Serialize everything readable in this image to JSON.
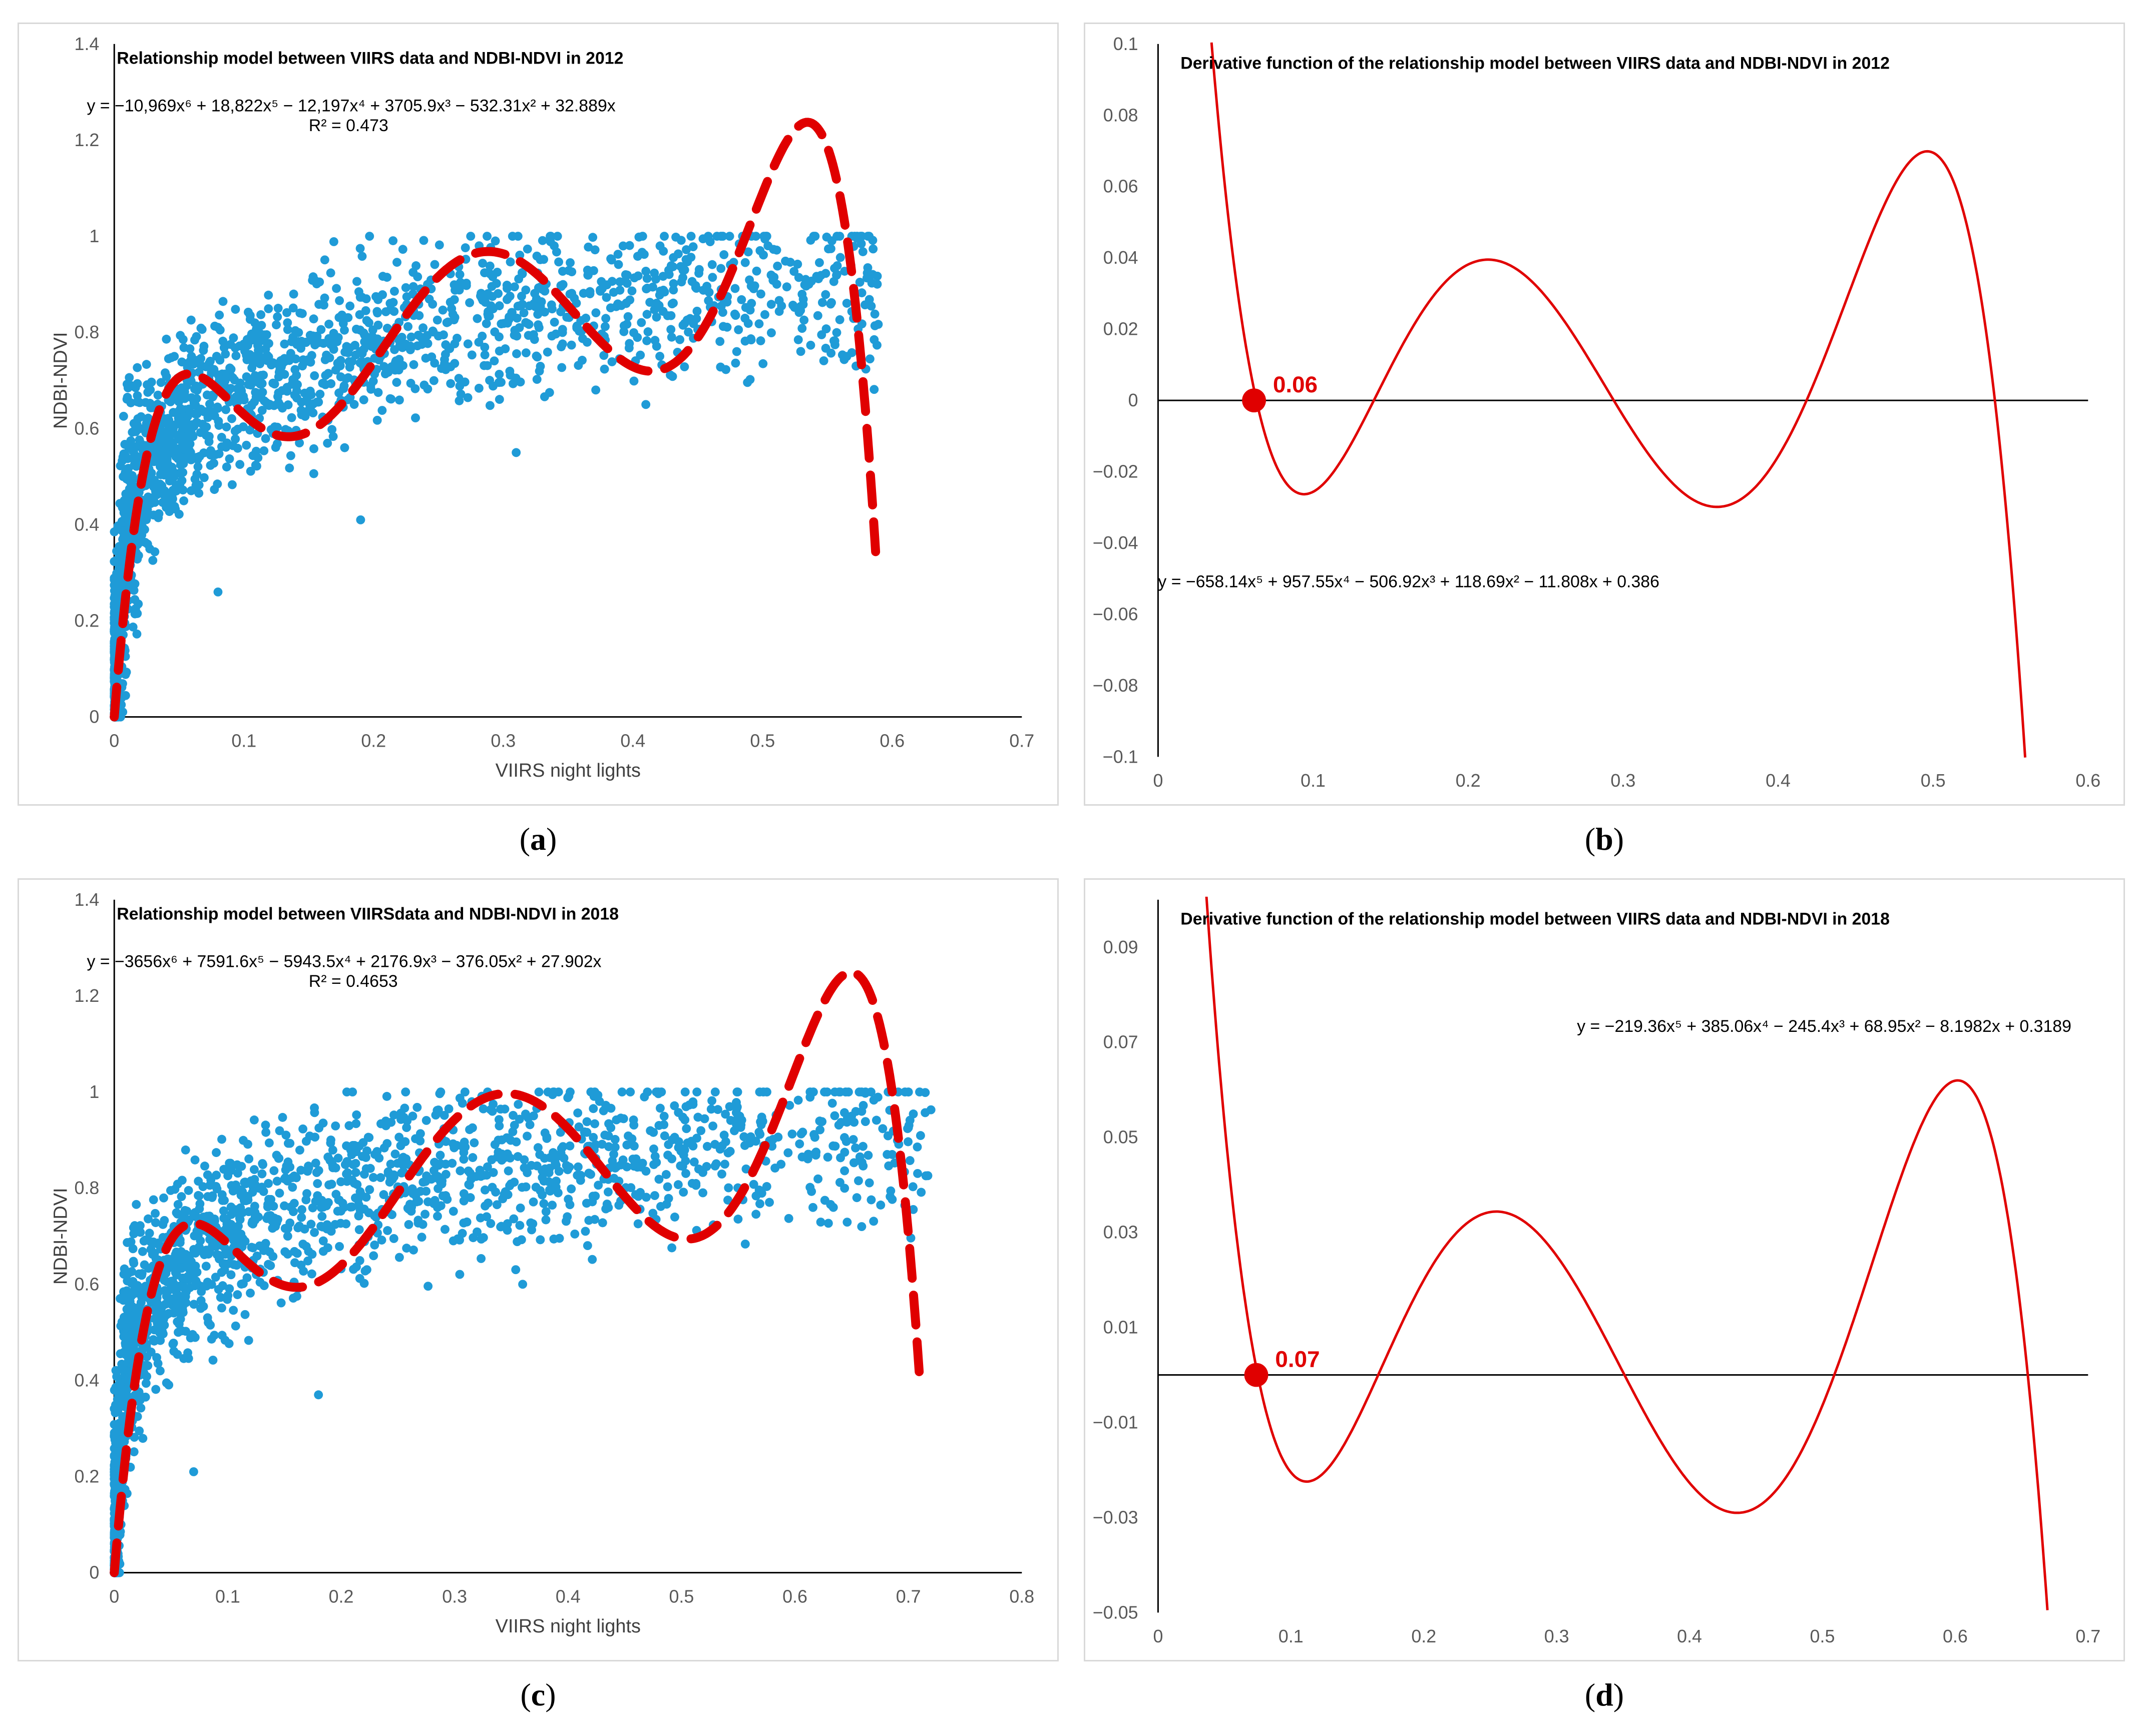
{
  "chart_data": [
    {
      "id": "a",
      "type": "scatter",
      "title": "Relationship model between VIIRS data and NDBI-NDVI in 2012",
      "equation": "y = −10,969x⁶ + 18,822x⁵ − 12,197x⁴ + 3705.9x³ − 532.31x² + 32.889x",
      "r2": "R² = 0.473",
      "xlabel": "VIIRS night lights",
      "ylabel": "NDBI-NDVI",
      "xlim": [
        0,
        0.7
      ],
      "ylim": [
        0,
        1.4
      ],
      "xticks": [
        0,
        0.1,
        0.2,
        0.3,
        0.4,
        0.5,
        0.6,
        0.7
      ],
      "yticks": [
        0,
        0.2,
        0.4,
        0.6,
        0.8,
        1,
        1.2,
        1.4
      ],
      "xtick_labels": [
        "0",
        "0.1",
        "0.2",
        "0.3",
        "0.4",
        "0.5",
        "0.6",
        "0.7"
      ],
      "ytick_labels": [
        "0",
        "0.2",
        "0.4",
        "0.6",
        "0.8",
        "1",
        "1.2",
        "1.4"
      ],
      "scatter_color": "#1f9bd7",
      "fit_color": "#e00000",
      "fit_coeffs": [
        -10969,
        18822,
        -12197,
        3705.9,
        -532.31,
        32.889,
        0
      ],
      "fit_range": [
        0,
        0.588
      ],
      "cloud": {
        "x_max": 0.59,
        "n": 1900,
        "trend": [
          [
            0,
            0.05
          ],
          [
            0.01,
            0.4
          ],
          [
            0.03,
            0.55
          ],
          [
            0.06,
            0.62
          ],
          [
            0.1,
            0.68
          ],
          [
            0.15,
            0.74
          ],
          [
            0.2,
            0.79
          ],
          [
            0.3,
            0.85
          ],
          [
            0.4,
            0.87
          ],
          [
            0.5,
            0.89
          ],
          [
            0.59,
            0.9
          ]
        ],
        "spread": 0.11
      },
      "extra_points": [
        [
          0.31,
          0.55
        ],
        [
          0.08,
          0.26
        ],
        [
          0.19,
          0.41
        ],
        [
          0.565,
          0.75
        ],
        [
          0.41,
          0.65
        ]
      ]
    },
    {
      "id": "b",
      "type": "line",
      "title": "Derivative function of the relationship model between VIIRS data and NDBI-NDVI in 2012",
      "equation": "y = −658.14x⁵ + 957.55x⁴ − 506.92x³ + 118.69x² − 11.808x + 0.386",
      "xlim": [
        0,
        0.6
      ],
      "ylim": [
        -0.1,
        0.1
      ],
      "xticks": [
        0,
        0.1,
        0.2,
        0.3,
        0.4,
        0.5,
        0.6
      ],
      "yticks": [
        -0.1,
        -0.08,
        -0.06,
        -0.04,
        -0.02,
        0,
        0.02,
        0.04,
        0.06,
        0.08,
        0.1
      ],
      "xtick_labels": [
        "0",
        "0.1",
        "0.2",
        "0.3",
        "0.4",
        "0.5",
        "0.6"
      ],
      "ytick_labels": [
        "−0.1",
        "−0.08",
        "−0.06",
        "−0.04",
        "−0.02",
        "0",
        "0.02",
        "0.04",
        "0.06",
        "0.08",
        "0.1"
      ],
      "line_color": "#e00000",
      "coeffs": [
        -658.14,
        957.55,
        -506.92,
        118.69,
        -11.808,
        0.386
      ],
      "root_x": 0.0619,
      "root_label": "0.06"
    },
    {
      "id": "c",
      "type": "scatter",
      "title": "Relationship model between VIIRSdata and NDBI-NDVI in 2018",
      "equation": "y = −3656x⁶ + 7591.6x⁵ − 5943.5x⁴ + 2176.9x³ − 376.05x² + 27.902x",
      "r2": "R² = 0.4653",
      "xlabel": "VIIRS night lights",
      "ylabel": "NDBI-NDVI",
      "xlim": [
        0,
        0.8
      ],
      "ylim": [
        0,
        1.4
      ],
      "xticks": [
        0,
        0.1,
        0.2,
        0.3,
        0.4,
        0.5,
        0.6,
        0.7,
        0.8
      ],
      "yticks": [
        0,
        0.2,
        0.4,
        0.6,
        0.8,
        1,
        1.2,
        1.4
      ],
      "xtick_labels": [
        "0",
        "0.1",
        "0.2",
        "0.3",
        "0.4",
        "0.5",
        "0.6",
        "0.7",
        "0.8"
      ],
      "ytick_labels": [
        "0",
        "0.2",
        "0.4",
        "0.6",
        "0.8",
        "1",
        "1.2",
        "1.4"
      ],
      "scatter_color": "#1f9bd7",
      "fit_color": "#e00000",
      "fit_coeffs": [
        -3656,
        7591.6,
        -5943.5,
        2176.9,
        -376.05,
        27.902,
        0
      ],
      "fit_range": [
        0,
        0.71
      ],
      "cloud": {
        "x_max": 0.72,
        "n": 1900,
        "trend": [
          [
            0,
            0.05
          ],
          [
            0.01,
            0.42
          ],
          [
            0.03,
            0.56
          ],
          [
            0.06,
            0.64
          ],
          [
            0.1,
            0.69
          ],
          [
            0.15,
            0.74
          ],
          [
            0.2,
            0.78
          ],
          [
            0.3,
            0.84
          ],
          [
            0.4,
            0.86
          ],
          [
            0.5,
            0.88
          ],
          [
            0.6,
            0.88
          ],
          [
            0.72,
            0.9
          ]
        ],
        "spread": 0.11
      },
      "extra_points": [
        [
          0.36,
          0.6
        ],
        [
          0.18,
          0.37
        ],
        [
          0.07,
          0.21
        ],
        [
          0.205,
          1.0
        ],
        [
          0.21,
          1.0
        ]
      ]
    },
    {
      "id": "d",
      "type": "line",
      "title": "Derivative function of the relationship model between VIIRS data and NDBI-NDVI in 2018",
      "equation": "y = −219.36x⁵ + 385.06x⁴ − 245.4x³ + 68.95x² − 8.1982x + 0.3189",
      "xlim": [
        0,
        0.7
      ],
      "ylim": [
        -0.05,
        0.1
      ],
      "xticks": [
        0,
        0.1,
        0.2,
        0.3,
        0.4,
        0.5,
        0.6,
        0.7
      ],
      "yticks": [
        -0.05,
        -0.03,
        -0.01,
        0.01,
        0.03,
        0.05,
        0.07,
        0.09
      ],
      "xtick_labels": [
        "0",
        "0.1",
        "0.2",
        "0.3",
        "0.4",
        "0.5",
        "0.6",
        "0.7"
      ],
      "ytick_labels": [
        "−0.05",
        "−0.03",
        "−0.01",
        "0.01",
        "0.03",
        "0.05",
        "0.07",
        "0.09"
      ],
      "line_color": "#e00000",
      "coeffs": [
        -219.36,
        385.06,
        -245.4,
        68.95,
        -8.1982,
        0.3189
      ],
      "root_x": 0.0739,
      "root_label": "0.07"
    }
  ],
  "captions": {
    "a": "a",
    "b": "b",
    "c": "c",
    "d": "d"
  }
}
